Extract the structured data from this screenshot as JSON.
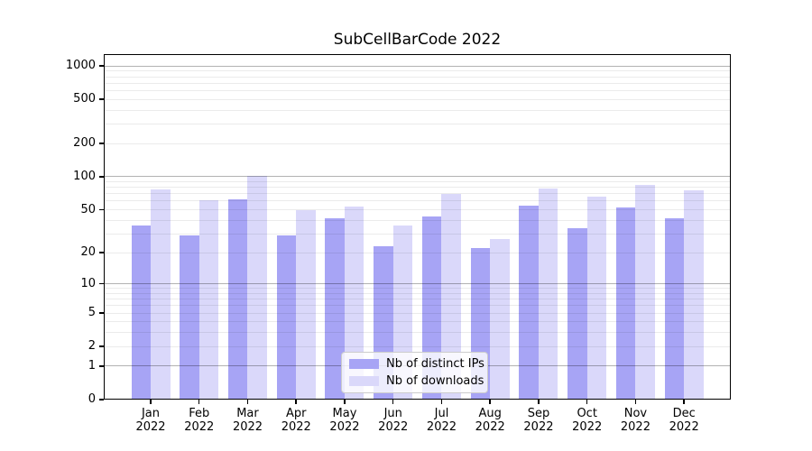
{
  "chart_data": {
    "type": "bar",
    "title": "SubCellBarCode 2022",
    "scale": "log1p",
    "grid": true,
    "legend_position": "lower center",
    "categories": [
      "Jan",
      "Feb",
      "Mar",
      "Apr",
      "May",
      "Jun",
      "Jul",
      "Aug",
      "Sep",
      "Oct",
      "Nov",
      "Dec"
    ],
    "category_year": "2022",
    "series": [
      {
        "name": "Nb of distinct IPs",
        "color": "#a7a4f5",
        "values": [
          36,
          29,
          62,
          29,
          42,
          23,
          43,
          22,
          55,
          34,
          52,
          42
        ]
      },
      {
        "name": "Nb of downloads",
        "color": "#dad8fa",
        "values": [
          77,
          61,
          102,
          50,
          53,
          36,
          70,
          27,
          78,
          66,
          84,
          75
        ]
      }
    ],
    "yticks": [
      0,
      1,
      2,
      5,
      10,
      20,
      50,
      100,
      200,
      500,
      1000
    ],
    "ylim": [
      0,
      1280
    ],
    "xlabel": "",
    "ylabel": ""
  },
  "colors": {
    "major_grid": "rgba(0,0,0,0.30)",
    "minor_grid": "rgba(0,0,0,0.08)",
    "axis": "#000000"
  }
}
